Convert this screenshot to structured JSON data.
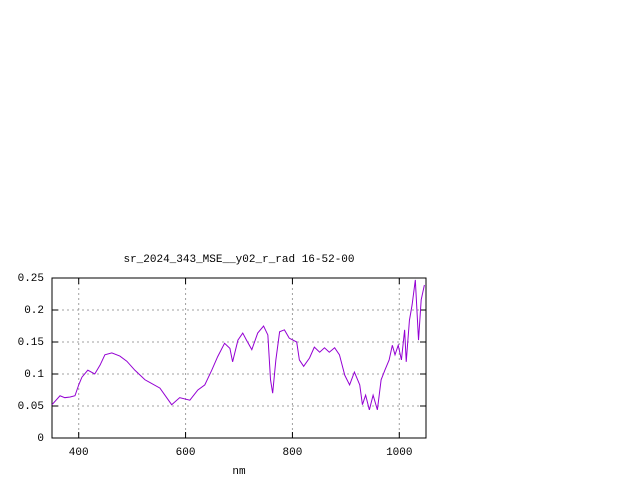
{
  "chart_data": {
    "type": "line",
    "title": "sr_2024_343_MSE__y02_r_rad 16-52-00",
    "xlabel": "nm",
    "x": [
      350,
      365,
      374,
      384,
      393,
      400,
      406,
      417,
      430,
      440,
      449,
      462,
      477,
      490,
      505,
      524,
      552,
      574,
      589,
      608,
      623,
      636,
      649,
      660,
      673,
      683,
      688,
      698,
      707,
      714,
      724,
      735,
      746,
      754,
      759,
      763,
      769,
      776,
      785,
      794,
      808,
      813,
      821,
      832,
      841,
      851,
      860,
      869,
      879,
      888,
      898,
      907,
      916,
      926,
      931,
      937,
      944,
      951,
      959,
      966,
      973,
      981,
      987,
      992,
      998,
      1004,
      1010,
      1013,
      1019,
      1024,
      1030,
      1036,
      1041,
      1047
    ],
    "series": [
      {
        "color": "#9400d3",
        "values": [
          0.052,
          0.066,
          0.063,
          0.064,
          0.066,
          0.083,
          0.095,
          0.106,
          0.1,
          0.114,
          0.13,
          0.133,
          0.128,
          0.12,
          0.106,
          0.091,
          0.078,
          0.052,
          0.063,
          0.059,
          0.075,
          0.083,
          0.106,
          0.127,
          0.148,
          0.14,
          0.119,
          0.153,
          0.164,
          0.153,
          0.138,
          0.164,
          0.175,
          0.161,
          0.091,
          0.07,
          0.122,
          0.166,
          0.169,
          0.156,
          0.15,
          0.122,
          0.112,
          0.125,
          0.142,
          0.134,
          0.141,
          0.134,
          0.141,
          0.13,
          0.098,
          0.083,
          0.103,
          0.083,
          0.052,
          0.067,
          0.044,
          0.067,
          0.044,
          0.091,
          0.106,
          0.122,
          0.145,
          0.13,
          0.145,
          0.122,
          0.169,
          0.119,
          0.184,
          0.208,
          0.247,
          0.153,
          0.216,
          0.239
        ]
      }
    ],
    "xlim": [
      350,
      1050
    ],
    "ylim": [
      0,
      0.25
    ],
    "xticks": [
      400,
      600,
      800,
      1000
    ],
    "yticks": [
      0,
      0.05,
      0.1,
      0.15,
      0.2,
      0.25
    ],
    "grid": true
  }
}
